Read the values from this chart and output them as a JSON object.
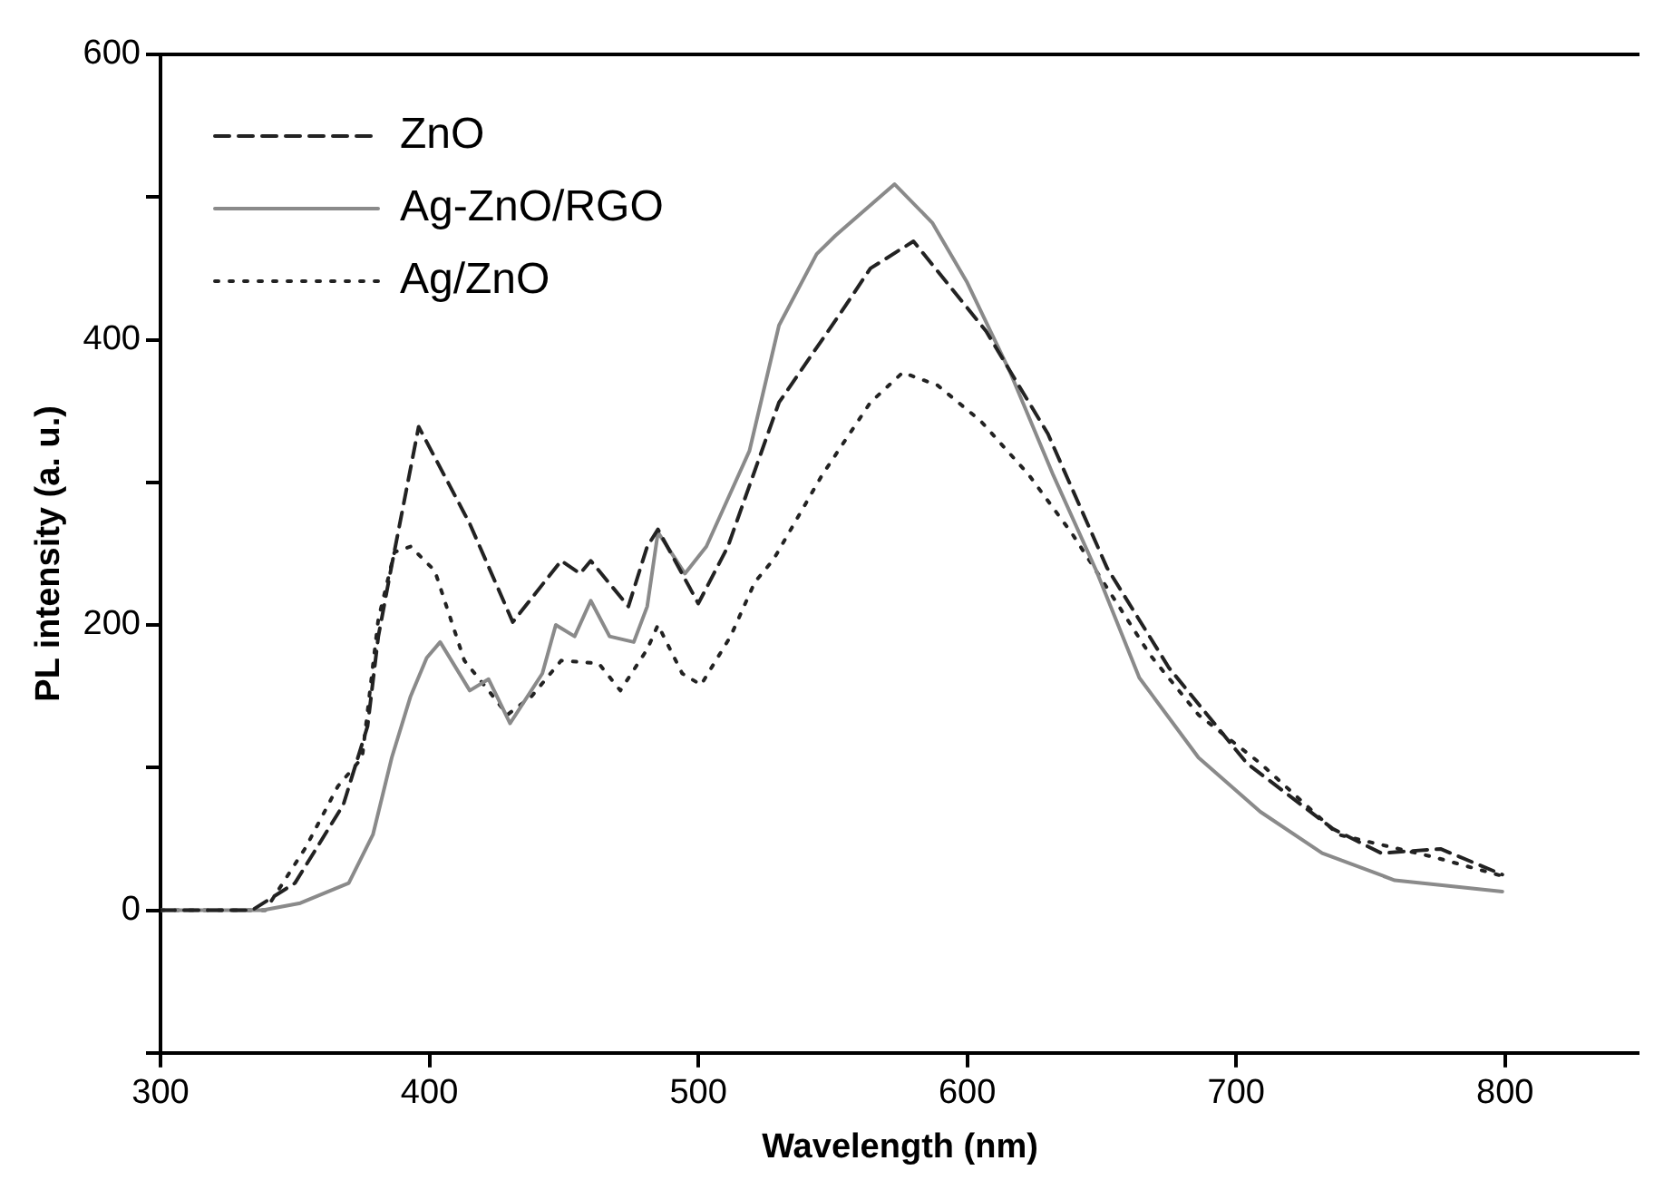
{
  "chart_data": {
    "type": "line",
    "xlabel": "Wavelength (nm)",
    "ylabel": "PL intensity (a. u.)",
    "xlim": [
      300,
      850
    ],
    "xticks": [
      300,
      400,
      500,
      600,
      700,
      800
    ],
    "ylim": [
      -100,
      600
    ],
    "yticks": [
      {
        "value": -100,
        "label": null
      },
      0,
      {
        "value": 100,
        "label": null
      },
      200,
      {
        "value": 300,
        "label": null
      },
      400,
      {
        "value": 500,
        "label": null
      },
      600
    ],
    "grid": false,
    "legend": "top left",
    "marker": "none",
    "series": [
      {
        "name": "ZnO",
        "color": "#222222",
        "line_style": "dashed",
        "x": [
          300,
          334,
          350,
          368,
          377,
          381,
          386,
          396,
          415,
          431,
          449,
          456,
          460,
          474,
          481,
          485,
          500,
          511,
          530,
          553,
          564,
          580,
          607,
          630,
          652,
          675,
          704,
          736,
          754,
          776,
          799
        ],
        "values": [
          0,
          0,
          19,
          74,
          129,
          192,
          242,
          339,
          271,
          202,
          245,
          236,
          245,
          213,
          255,
          267,
          215,
          255,
          356,
          419,
          450,
          469,
          406,
          334,
          240,
          170,
          103,
          57,
          40,
          43,
          25
        ]
      },
      {
        "name": "Ag-ZnO/RGO",
        "color": "#8a8a8a",
        "line_style": "solid",
        "x": [
          300,
          338,
          352,
          370,
          379,
          386,
          393,
          399,
          404,
          415,
          422,
          430,
          442,
          447,
          454,
          460,
          467,
          476,
          481,
          485,
          495,
          503,
          519,
          530,
          544,
          551,
          573,
          587,
          600,
          616,
          632,
          648,
          664,
          686,
          709,
          732,
          759,
          799
        ],
        "values": [
          0,
          0,
          5,
          19,
          53,
          107,
          150,
          177,
          188,
          154,
          162,
          131,
          166,
          200,
          192,
          217,
          192,
          188,
          213,
          265,
          236,
          255,
          322,
          410,
          460,
          473,
          509,
          482,
          440,
          377,
          305,
          238,
          163,
          107,
          69,
          40,
          21,
          13
        ]
      },
      {
        "name": "Ag/ZnO",
        "color": "#222222",
        "line_style": "dotted",
        "x": [
          300,
          339,
          354,
          366,
          375,
          381,
          387,
          393,
          402,
          413,
          422,
          429,
          438,
          449,
          463,
          471,
          481,
          485,
          494,
          501,
          512,
          521,
          528,
          546,
          564,
          576,
          589,
          605,
          623,
          639,
          652,
          668,
          686,
          709,
          738,
          774,
          799
        ],
        "values": [
          0,
          0,
          44,
          87,
          107,
          204,
          251,
          255,
          238,
          175,
          154,
          137,
          150,
          175,
          173,
          154,
          183,
          200,
          166,
          158,
          192,
          230,
          246,
          305,
          356,
          377,
          368,
          343,
          305,
          264,
          226,
          179,
          137,
          103,
          53,
          37,
          24
        ]
      }
    ]
  }
}
